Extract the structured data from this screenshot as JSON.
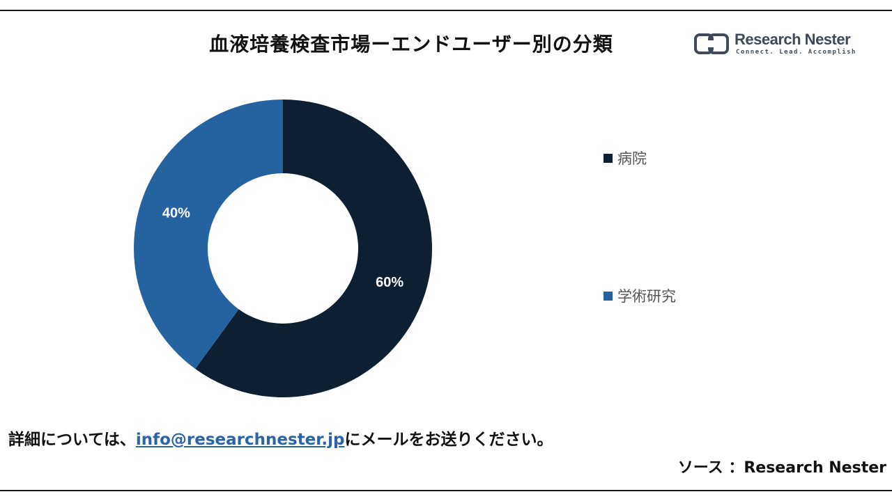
{
  "header": {
    "title": "血液培養検査市場ーエンドユーザー別の分類"
  },
  "logo": {
    "name": "Research Nester",
    "tagline": "Connect. Lead. Accomplish"
  },
  "chart_data": {
    "type": "pie",
    "donut": true,
    "title": "血液培養検査市場ーエンドユーザー別の分類",
    "start_angle_deg": 0,
    "direction": "clockwise",
    "slices": [
      {
        "name": "病院",
        "value": 60,
        "label": "60%",
        "color": "#0d1f30"
      },
      {
        "name": "学術研究",
        "value": 40,
        "label": "40%",
        "color": "#2563a0"
      }
    ],
    "legend_position": "right"
  },
  "footer": {
    "prefix": "詳細については、",
    "email": "info@researchnester.jp",
    "suffix": "にメールをお送りください。",
    "source": "ソース ：Research Nester"
  },
  "colors": {
    "dark_navy": "#0d1f30",
    "medium_blue": "#2563a0",
    "link": "#2a63a8"
  }
}
